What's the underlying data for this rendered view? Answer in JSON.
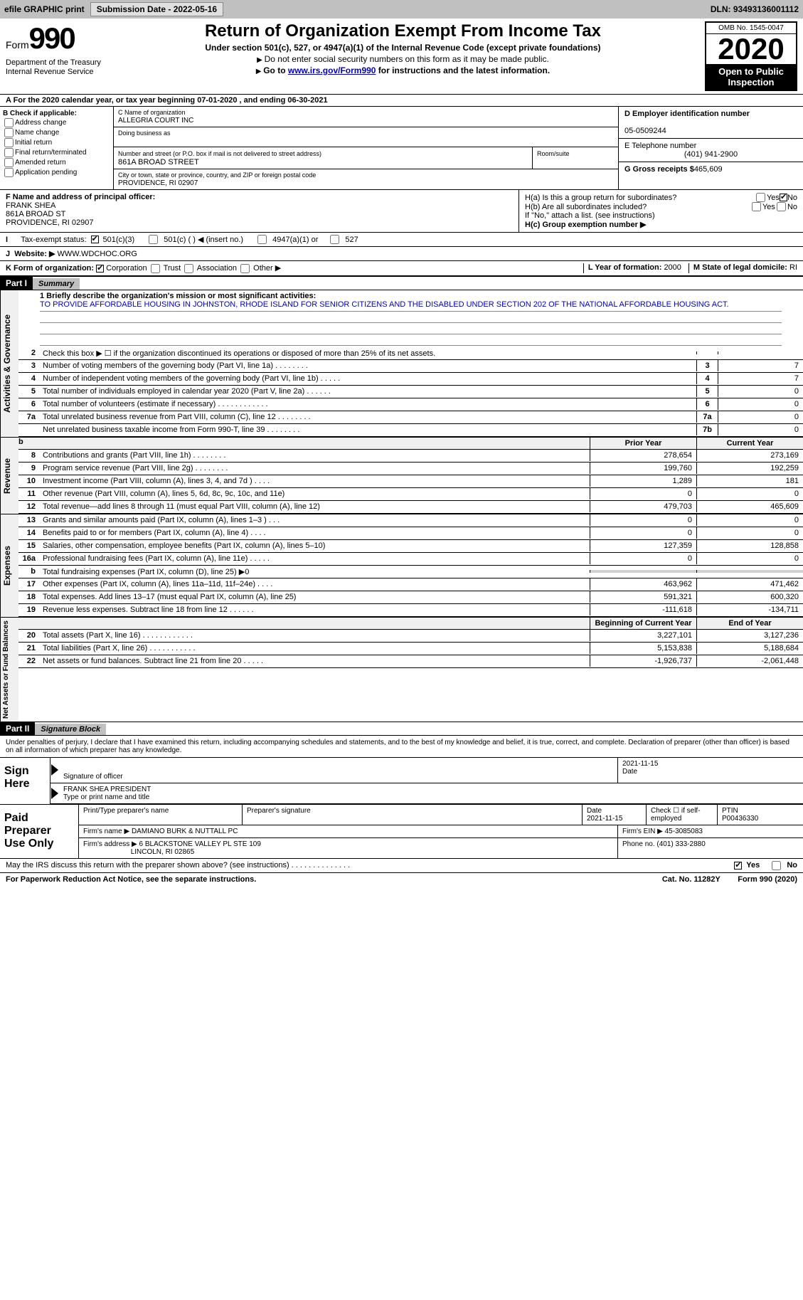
{
  "topbar": {
    "efile": "efile GRAPHIC print",
    "submission_label": "Submission Date - 2022-05-16",
    "dln_label": "DLN: 93493136001112"
  },
  "header": {
    "form_word": "Form",
    "form_num": "990",
    "dept": "Department of the Treasury\nInternal Revenue Service",
    "title": "Return of Organization Exempt From Income Tax",
    "subtitle": "Under section 501(c), 527, or 4947(a)(1) of the Internal Revenue Code (except private foundations)",
    "instr1": "Do not enter social security numbers on this form as it may be made public.",
    "instr2_pre": "Go to ",
    "instr2_link": "www.irs.gov/Form990",
    "instr2_post": " for instructions and the latest information.",
    "omb": "OMB No. 1545-0047",
    "year": "2020",
    "inspect": "Open to Public Inspection"
  },
  "line_a": "A For the 2020 calendar year, or tax year beginning 07-01-2020    , and ending 06-30-2021",
  "col_b": {
    "header": "B Check if applicable:",
    "opts": [
      "Address change",
      "Name change",
      "Initial return",
      "Final return/terminated",
      "Amended return",
      "Application pending"
    ]
  },
  "col_c": {
    "name_label": "C Name of organization",
    "name": "ALLEGRIA COURT INC",
    "dba_label": "Doing business as",
    "addr_label": "Number and street (or P.O. box if mail is not delivered to street address)",
    "room_label": "Room/suite",
    "addr": "861A BROAD STREET",
    "city_label": "City or town, state or province, country, and ZIP or foreign postal code",
    "city": "PROVIDENCE, RI  02907"
  },
  "col_d": {
    "label": "D Employer identification number",
    "val": "05-0509244",
    "phone_label": "E Telephone number",
    "phone": "(401) 941-2900",
    "gross_label": "G Gross receipts $",
    "gross": "465,609"
  },
  "officer": {
    "label": "F  Name and address of principal officer:",
    "name": "FRANK SHEA",
    "addr1": "861A BROAD ST",
    "addr2": "PROVIDENCE, RI  02907"
  },
  "h": {
    "a_label": "H(a)  Is this a group return for subordinates?",
    "b_label": "H(b)  Are all subordinates included?",
    "b_note": "If \"No,\" attach a list. (see instructions)",
    "c_label": "H(c)  Group exemption number ▶",
    "yes": "Yes",
    "no": "No"
  },
  "status": {
    "i": "I",
    "label": "Tax-exempt status:",
    "s501c3": "501(c)(3)",
    "s501c": "501(c) (   ) ◀ (insert no.)",
    "s4947": "4947(a)(1) or",
    "s527": "527"
  },
  "website": {
    "j": "J",
    "label": "Website: ▶",
    "val": " WWW.WDCHOC.ORG"
  },
  "k": {
    "label": "K Form of organization:",
    "corp": "Corporation",
    "trust": "Trust",
    "assoc": "Association",
    "other": "Other ▶",
    "l_label": "L Year of formation: ",
    "l_val": "2000",
    "m_label": "M State of legal domicile: ",
    "m_val": "RI"
  },
  "part1": {
    "num": "Part I",
    "title": "Summary"
  },
  "mission": {
    "prompt": "1   Briefly describe the organization's mission or most significant activities:",
    "text": "TO PROVIDE AFFORDABLE HOUSING IN JOHNSTON, RHODE ISLAND FOR SENIOR CITIZENS AND THE DISABLED UNDER SECTION 202 OF THE NATIONAL AFFORDABLE HOUSING ACT."
  },
  "gov_lines": [
    {
      "n": "2",
      "txt": "Check this box ▶ ☐  if the organization discontinued its operations or disposed of more than 25% of its net assets.",
      "box": "",
      "val": ""
    },
    {
      "n": "3",
      "txt": "Number of voting members of the governing body (Part VI, line 1a)   .    .    .    .    .    .    .    .",
      "box": "3",
      "val": "7"
    },
    {
      "n": "4",
      "txt": "Number of independent voting members of the governing body (Part VI, line 1b)   .    .    .    .    .",
      "box": "4",
      "val": "7"
    },
    {
      "n": "5",
      "txt": "Total number of individuals employed in calendar year 2020 (Part V, line 2a)   .    .    .    .    .    .",
      "box": "5",
      "val": "0"
    },
    {
      "n": "6",
      "txt": "Total number of volunteers (estimate if necessary)   .    .    .    .    .    .    .    .    .    .    .    .",
      "box": "6",
      "val": "0"
    },
    {
      "n": "7a",
      "txt": "Total unrelated business revenue from Part VIII, column (C), line 12   .    .    .    .    .    .    .    .",
      "box": "7a",
      "val": "0"
    },
    {
      "n": "",
      "txt": "Net unrelated business taxable income from Form 990-T, line 39   .    .    .    .    .    .    .    .",
      "box": "7b",
      "val": "0"
    }
  ],
  "col_headers": {
    "b": "b",
    "prior": "Prior Year",
    "current": "Current Year"
  },
  "revenue": [
    {
      "n": "8",
      "txt": "Contributions and grants (Part VIII, line 1h)   .    .    .    .    .    .    .    .",
      "prior": "278,654",
      "cur": "273,169"
    },
    {
      "n": "9",
      "txt": "Program service revenue (Part VIII, line 2g)   .    .    .    .    .    .    .    .",
      "prior": "199,760",
      "cur": "192,259"
    },
    {
      "n": "10",
      "txt": "Investment income (Part VIII, column (A), lines 3, 4, and 7d )   .    .    .    .",
      "prior": "1,289",
      "cur": "181"
    },
    {
      "n": "11",
      "txt": "Other revenue (Part VIII, column (A), lines 5, 6d, 8c, 9c, 10c, and 11e)",
      "prior": "0",
      "cur": "0"
    },
    {
      "n": "12",
      "txt": "Total revenue—add lines 8 through 11 (must equal Part VIII, column (A), line 12)",
      "prior": "479,703",
      "cur": "465,609"
    }
  ],
  "expenses": [
    {
      "n": "13",
      "txt": "Grants and similar amounts paid (Part IX, column (A), lines 1–3 )   .    .    .",
      "prior": "0",
      "cur": "0"
    },
    {
      "n": "14",
      "txt": "Benefits paid to or for members (Part IX, column (A), line 4)   .    .    .    .",
      "prior": "0",
      "cur": "0"
    },
    {
      "n": "15",
      "txt": "Salaries, other compensation, employee benefits (Part IX, column (A), lines 5–10)",
      "prior": "127,359",
      "cur": "128,858"
    },
    {
      "n": "16a",
      "txt": "Professional fundraising fees (Part IX, column (A), line 11e)   .    .    .    .    .",
      "prior": "0",
      "cur": "0"
    },
    {
      "n": "b",
      "txt": "Total fundraising expenses (Part IX, column (D), line 25) ▶0",
      "prior": "shade",
      "cur": "shade"
    },
    {
      "n": "17",
      "txt": "Other expenses (Part IX, column (A), lines 11a–11d, 11f–24e)   .    .    .    .",
      "prior": "463,962",
      "cur": "471,462"
    },
    {
      "n": "18",
      "txt": "Total expenses. Add lines 13–17 (must equal Part IX, column (A), line 25)",
      "prior": "591,321",
      "cur": "600,320"
    },
    {
      "n": "19",
      "txt": "Revenue less expenses. Subtract line 18 from line 12   .    .    .    .    .    .",
      "prior": "-111,618",
      "cur": "-134,711"
    }
  ],
  "net_headers": {
    "begin": "Beginning of Current Year",
    "end": "End of Year"
  },
  "net": [
    {
      "n": "20",
      "txt": "Total assets (Part X, line 16)   .    .    .    .    .    .    .    .    .    .    .    .",
      "prior": "3,227,101",
      "cur": "3,127,236"
    },
    {
      "n": "21",
      "txt": "Total liabilities (Part X, line 26)   .    .    .    .    .    .    .    .    .    .    .",
      "prior": "5,153,838",
      "cur": "5,188,684"
    },
    {
      "n": "22",
      "txt": "Net assets or fund balances. Subtract line 21 from line 20   .    .    .    .    .",
      "prior": "-1,926,737",
      "cur": "-2,061,448"
    }
  ],
  "part2": {
    "num": "Part II",
    "title": "Signature Block"
  },
  "sig_decl": "Under penalties of perjury, I declare that I have examined this return, including accompanying schedules and statements, and to the best of my knowledge and belief, it is true, correct, and complete. Declaration of preparer (other than officer) is based on all information of which preparer has any knowledge.",
  "sign": {
    "label": "Sign Here",
    "sig_label": "Signature of officer",
    "date_label": "Date",
    "date": "2021-11-15",
    "name": "FRANK SHEA PRESIDENT",
    "name_label": "Type or print name and title"
  },
  "prep": {
    "label": "Paid Preparer Use Only",
    "h1": "Print/Type preparer's name",
    "h2": "Preparer's signature",
    "h3": "Date",
    "h3v": "2021-11-15",
    "h4": "Check ☐ if self-employed",
    "h5": "PTIN",
    "h5v": "P00436330",
    "firm_name_label": "Firm's name    ▶",
    "firm_name": "DAMIANO BURK & NUTTALL PC",
    "firm_ein_label": "Firm's EIN ▶",
    "firm_ein": "45-3085083",
    "firm_addr_label": "Firm's address ▶",
    "firm_addr": "6 BLACKSTONE VALLEY PL STE 109",
    "firm_city": "LINCOLN, RI  02865",
    "phone_label": "Phone no.",
    "phone": "(401) 333-2880"
  },
  "discuss": "May the IRS discuss this return with the preparer shown above? (see instructions)   .    .    .    .    .    .    .    .    .    .    .    .    .    .",
  "footer": {
    "pra": "For Paperwork Reduction Act Notice, see the separate instructions.",
    "cat": "Cat. No. 11282Y",
    "form": "Form 990 (2020)"
  },
  "side_labels": {
    "gov": "Activities & Governance",
    "rev": "Revenue",
    "exp": "Expenses",
    "net": "Net Assets or Fund Balances"
  }
}
